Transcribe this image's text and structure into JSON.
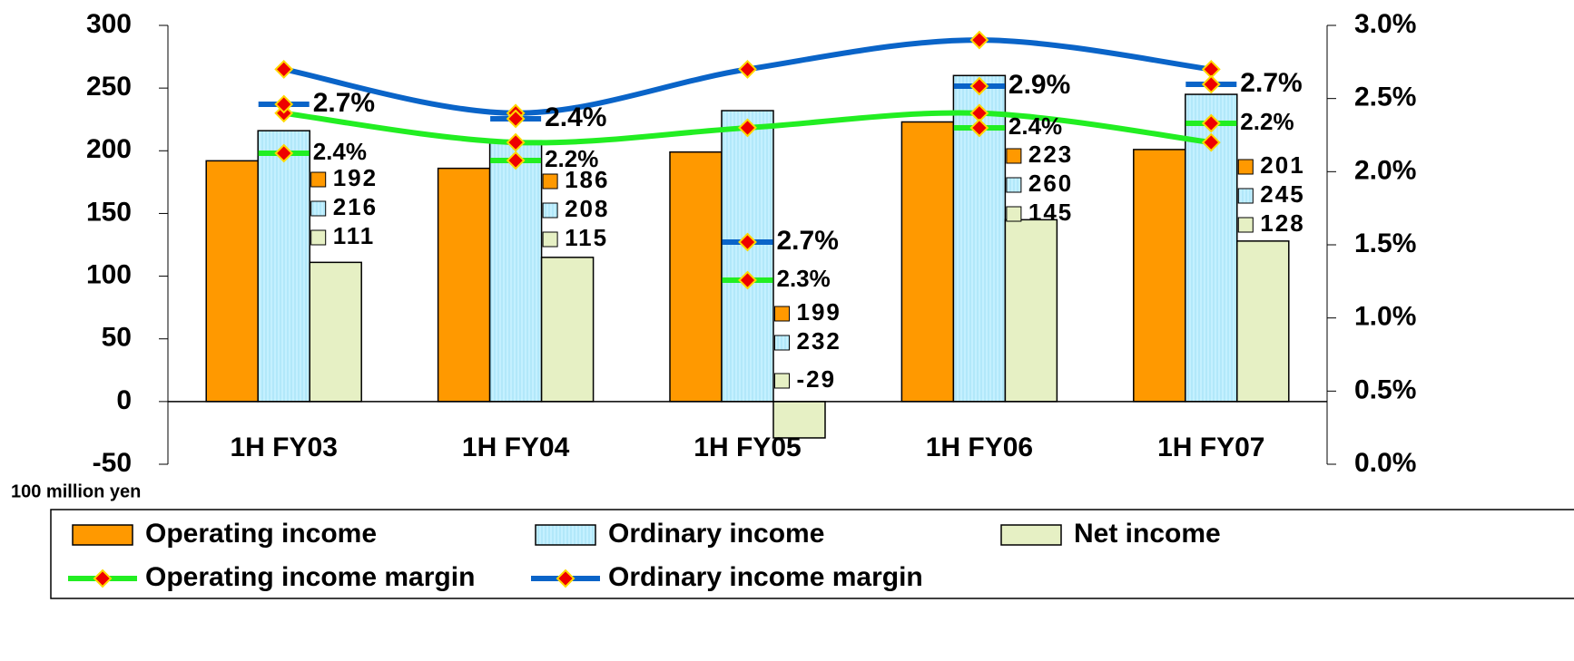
{
  "chart_data": {
    "type": "bar",
    "unit_label": "100 million yen",
    "categories": [
      "1H FY03",
      "1H FY04",
      "1H FY05",
      "1H FY06",
      "1H FY07"
    ],
    "ylim": [
      -50,
      300
    ],
    "yticks": [
      -50,
      0,
      50,
      100,
      150,
      200,
      250,
      300
    ],
    "y2lim": [
      0,
      3
    ],
    "y2ticks": [
      {
        "value": 0,
        "label": "0.0%"
      },
      {
        "value": 0.5,
        "label": "0.5%"
      },
      {
        "value": 1,
        "label": "1.0%"
      },
      {
        "value": 1.5,
        "label": "1.5%"
      },
      {
        "value": 2,
        "label": "2.0%"
      },
      {
        "value": 2.5,
        "label": "2.5%"
      },
      {
        "value": 3,
        "label": "3.0%"
      }
    ],
    "series": [
      {
        "name": "Operating income",
        "type": "bar",
        "color": "#ff9900",
        "values": [
          192,
          186,
          199,
          223,
          201
        ]
      },
      {
        "name": "Ordinary income",
        "type": "bar",
        "color": "#c4f0ff",
        "values": [
          216,
          208,
          232,
          260,
          245
        ]
      },
      {
        "name": "Net income",
        "type": "bar",
        "color": "#e6f0c4",
        "values": [
          111,
          115,
          -29,
          145,
          128
        ]
      },
      {
        "name": "Operating income margin",
        "type": "line",
        "axis": "y2",
        "color": "#22ee22",
        "values": [
          2.4,
          2.2,
          2.3,
          2.4,
          2.2
        ],
        "value_labels": [
          "2.4%",
          "2.2%",
          "2.3%",
          "2.4%",
          "2.2%"
        ]
      },
      {
        "name": "Ordinary income margin",
        "type": "line",
        "axis": "y2",
        "color": "#0a64c8",
        "values": [
          2.7,
          2.4,
          2.7,
          2.9,
          2.7
        ],
        "value_labels": [
          "2.7%",
          "2.4%",
          "2.7%",
          "2.9%",
          "2.7%"
        ]
      }
    ]
  }
}
